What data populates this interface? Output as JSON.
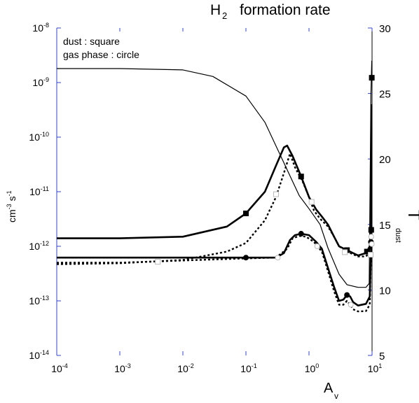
{
  "chart_data": {
    "type": "line",
    "title_main": "H",
    "title_sub": "2",
    "title_rest": "formation rate",
    "x_label_main": "A",
    "x_label_sub": "v",
    "y_label_left": {
      "a": "cm",
      "b": "-3",
      "c": " s",
      "d": "-1"
    },
    "y_label_right": {
      "main": "T",
      "sub": "dust"
    },
    "legend": [
      "dust : square",
      "gas phase :  circle"
    ],
    "x_axis": {
      "scale": "log",
      "range": [
        0.0001,
        10
      ],
      "ticks": [
        {
          "v": 0.0001,
          "base": "10",
          "exp": "-4"
        },
        {
          "v": 0.001,
          "base": "10",
          "exp": "-3"
        },
        {
          "v": 0.01,
          "base": "10",
          "exp": "-2"
        },
        {
          "v": 0.1,
          "base": "10",
          "exp": "-1"
        },
        {
          "v": 1,
          "base": "10",
          "exp": "0"
        },
        {
          "v": 10,
          "base": "10",
          "exp": "1"
        }
      ]
    },
    "y_axis_left": {
      "scale": "log",
      "range": [
        1e-14,
        1e-08
      ],
      "ticks": [
        {
          "v": 1e-08,
          "base": "10",
          "exp": "-8"
        },
        {
          "v": 1e-09,
          "base": "10",
          "exp": "-9"
        },
        {
          "v": 1e-10,
          "base": "10",
          "exp": "-10"
        },
        {
          "v": 1e-11,
          "base": "10",
          "exp": "-11"
        },
        {
          "v": 1e-12,
          "base": "10",
          "exp": "-12"
        },
        {
          "v": 1e-13,
          "base": "10",
          "exp": "-13"
        },
        {
          "v": 1e-14,
          "base": "10",
          "exp": "-14"
        }
      ]
    },
    "y_axis_right": {
      "scale": "linear",
      "range": [
        5,
        30
      ],
      "ticks": [
        {
          "v": 30,
          "label": "30"
        },
        {
          "v": 25,
          "label": "25"
        },
        {
          "v": 20,
          "label": "20"
        },
        {
          "v": 15,
          "label": "15"
        },
        {
          "v": 10,
          "label": "10"
        },
        {
          "v": 5,
          "label": "5"
        }
      ]
    },
    "series": [
      {
        "axis": "right",
        "style": "thin",
        "points": [
          [
            0.0001,
            26.9
          ],
          [
            0.001,
            26.9
          ],
          [
            0.01,
            26.8
          ],
          [
            0.03,
            26.3
          ],
          [
            0.1,
            24.8
          ],
          [
            0.2,
            22.8
          ],
          [
            0.4,
            19.7
          ],
          [
            0.7,
            17.2
          ],
          [
            1,
            16.2
          ],
          [
            1.5,
            15.0
          ],
          [
            2,
            13.2
          ],
          [
            3,
            11.2
          ],
          [
            4,
            10.4
          ],
          [
            6,
            10.2
          ],
          [
            8,
            10.2
          ],
          [
            9,
            10.5
          ],
          [
            9.6,
            25
          ],
          [
            9.9,
            27.5
          ]
        ]
      },
      {
        "axis": "left",
        "style": "thick",
        "points": [
          [
            0.0001,
            1.4e-12
          ],
          [
            0.001,
            1.4e-12
          ],
          [
            0.01,
            1.5e-12
          ],
          [
            0.05,
            2.3e-12
          ],
          [
            0.1,
            4e-12
          ],
          [
            0.2,
            1e-11
          ],
          [
            0.3,
            3e-11
          ],
          [
            0.4,
            6.5e-11
          ],
          [
            0.45,
            7e-11
          ],
          [
            0.55,
            4.5e-11
          ],
          [
            0.75,
            1.9e-11
          ],
          [
            1,
            8e-12
          ],
          [
            1.3,
            4.7e-12
          ],
          [
            1.6,
            3.5e-12
          ],
          [
            2,
            2.5e-12
          ],
          [
            2.5,
            1.5e-12
          ],
          [
            3,
            1e-12
          ],
          [
            4,
            8.5e-13
          ],
          [
            6,
            6.8e-13
          ],
          [
            8,
            7.5e-13
          ],
          [
            9.2,
            1e-12
          ],
          [
            9.6,
            1.8e-12
          ],
          [
            9.8,
            4e-10
          ]
        ]
      },
      {
        "axis": "left",
        "style": "dashed",
        "points": [
          [
            0.0001,
            4.7e-13
          ],
          [
            0.001,
            4.9e-13
          ],
          [
            0.01,
            5.6e-13
          ],
          [
            0.05,
            8e-13
          ],
          [
            0.1,
            1.15e-12
          ],
          [
            0.2,
            3e-12
          ],
          [
            0.3,
            8e-12
          ],
          [
            0.4,
            2.2e-11
          ],
          [
            0.5,
            5e-11
          ],
          [
            0.6,
            2.8e-11
          ],
          [
            0.8,
            1.5e-11
          ],
          [
            1,
            8e-12
          ],
          [
            1.2,
            4.5e-12
          ],
          [
            1.5,
            3.2e-12
          ],
          [
            2,
            2.3e-12
          ],
          [
            2.5,
            1.5e-12
          ],
          [
            3,
            1e-12
          ],
          [
            4,
            8e-13
          ],
          [
            6,
            6.5e-13
          ],
          [
            8,
            6.5e-13
          ],
          [
            9.3,
            8e-13
          ],
          [
            9.8,
            1.2e-12
          ]
        ]
      },
      {
        "axis": "left",
        "style": "thick",
        "points": [
          [
            0.0001,
            6.2e-13
          ],
          [
            0.01,
            6.2e-13
          ],
          [
            0.1,
            6.2e-13
          ],
          [
            0.3,
            6.2e-13
          ],
          [
            0.4,
            7.5e-13
          ],
          [
            0.5,
            1.3e-12
          ],
          [
            0.6,
            1.6e-12
          ],
          [
            0.75,
            1.7e-12
          ],
          [
            1,
            1.6e-12
          ],
          [
            1.3,
            1.2e-12
          ],
          [
            1.6,
            9e-13
          ],
          [
            2,
            4e-13
          ],
          [
            2.5,
            1.8e-13
          ],
          [
            3,
            1e-13
          ],
          [
            3.5,
            1.05e-13
          ],
          [
            4,
            1.28e-13
          ],
          [
            4.5,
            1.2e-13
          ],
          [
            5,
            9.5e-14
          ],
          [
            6,
            8.2e-14
          ],
          [
            8,
            8.8e-14
          ],
          [
            9.2,
            1.2e-13
          ],
          [
            9.8,
            1.9e-12
          ]
        ]
      },
      {
        "axis": "left",
        "style": "dashed",
        "points": [
          [
            0.0001,
            5e-13
          ],
          [
            0.001,
            5e-13
          ],
          [
            0.01,
            5.5e-13
          ],
          [
            0.1,
            6e-13
          ],
          [
            0.3,
            6.2e-13
          ],
          [
            0.45,
            9e-13
          ],
          [
            0.55,
            1.4e-12
          ],
          [
            0.7,
            1.55e-12
          ],
          [
            0.9,
            1.5e-12
          ],
          [
            1.2,
            1.2e-12
          ],
          [
            1.6,
            8e-13
          ],
          [
            2,
            3.5e-13
          ],
          [
            2.5,
            1.5e-13
          ],
          [
            3,
            8.5e-14
          ],
          [
            3.5,
            8.5e-14
          ],
          [
            4,
            1e-13
          ],
          [
            4.5,
            8.5e-14
          ],
          [
            5,
            7e-14
          ],
          [
            6,
            6.4e-14
          ],
          [
            8,
            6.5e-14
          ],
          [
            9.2,
            8.5e-14
          ],
          [
            9.8,
            1.5e-12
          ]
        ]
      }
    ],
    "markers": [
      {
        "axis": "right",
        "shape": "square",
        "filled": true,
        "x": 9.9,
        "y": 26.2
      },
      {
        "axis": "left",
        "shape": "square",
        "filled": true,
        "x": 0.1,
        "y": 4e-12
      },
      {
        "axis": "left",
        "shape": "square",
        "filled": true,
        "x": 0.75,
        "y": 1.9e-11
      },
      {
        "axis": "left",
        "shape": "square",
        "filled": true,
        "x": 4,
        "y": 8.5e-13
      },
      {
        "axis": "left",
        "shape": "square",
        "filled": true,
        "x": 8.3,
        "y": 8e-13
      },
      {
        "axis": "left",
        "shape": "square",
        "filled": true,
        "x": 9.7,
        "y": 2e-12
      },
      {
        "axis": "left",
        "shape": "square",
        "filled": false,
        "x": 0.004,
        "y": 5.2e-13
      },
      {
        "axis": "left",
        "shape": "square",
        "filled": false,
        "x": 0.3,
        "y": 9e-12
      },
      {
        "axis": "left",
        "shape": "square",
        "filled": false,
        "x": 1.1,
        "y": 6.5e-12
      },
      {
        "axis": "left",
        "shape": "square",
        "filled": false,
        "x": 3.7,
        "y": 7.8e-13
      },
      {
        "axis": "left",
        "shape": "square",
        "filled": false,
        "x": 9.5,
        "y": 7e-13
      },
      {
        "axis": "left",
        "shape": "circle",
        "filled": true,
        "x": 0.1,
        "y": 6.2e-13
      },
      {
        "axis": "left",
        "shape": "circle",
        "filled": true,
        "x": 0.75,
        "y": 1.7e-12
      },
      {
        "axis": "left",
        "shape": "circle",
        "filled": true,
        "x": 4,
        "y": 1.28e-13
      },
      {
        "axis": "left",
        "shape": "circle",
        "filled": true,
        "x": 9.6,
        "y": 1.2e-12
      },
      {
        "axis": "left",
        "shape": "circle",
        "filled": false,
        "x": 0.32,
        "y": 6.2e-13
      },
      {
        "axis": "left",
        "shape": "circle",
        "filled": false,
        "x": 1.35,
        "y": 1e-12
      },
      {
        "axis": "left",
        "shape": "circle",
        "filled": false,
        "x": 4.6,
        "y": 8.5e-14
      },
      {
        "axis": "left",
        "shape": "circle",
        "filled": false,
        "x": 9.9,
        "y": 1.1e-12
      },
      {
        "axis": "left",
        "shape": "circle",
        "filled": false,
        "x": 9.7,
        "y": 1.5e-12
      }
    ]
  }
}
